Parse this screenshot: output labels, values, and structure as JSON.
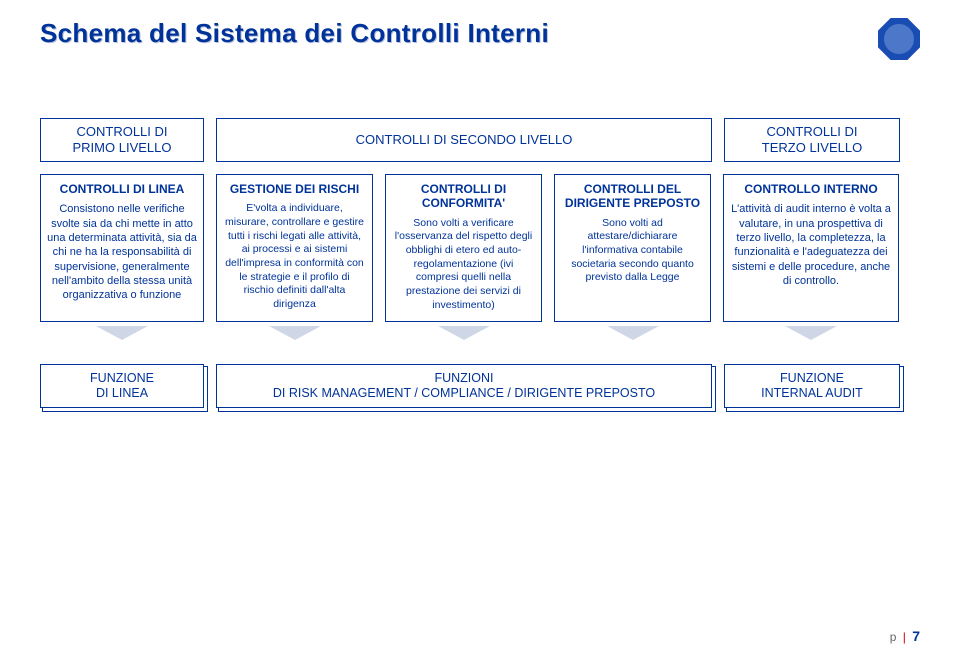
{
  "title": "Schema del Sistema dei Controlli Interni",
  "colors": {
    "primary": "#003399",
    "arrow": "#cfd6e6",
    "title_shadow": "#b8c2dc",
    "background": "#ffffff",
    "footer_gray": "#666666",
    "footer_sep": "#cc0000"
  },
  "level_headers": {
    "l1": "CONTROLLI DI\nPRIMO LIVELLO",
    "l2": "CONTROLLI DI SECONDO LIVELLO",
    "l3": "CONTROLLI DI\nTERZO LIVELLO"
  },
  "cards": [
    {
      "title": "CONTROLLI DI LINEA",
      "body": "Consistono nelle verifiche svolte sia da chi mette in atto una determinata attività, sia da chi ne ha la responsabilità di supervisione, generalmente nell'ambito della stessa unità organizzativa o funzione"
    },
    {
      "title": "GESTIONE DEI RISCHI",
      "body": "E'volta a individuare, misurare, controllare e gestire tutti i rischi legati alle attività, ai processi e ai sistemi dell'impresa in conformità con le strategie e il profilo di rischio definiti dall'alta dirigenza"
    },
    {
      "title": "CONTROLLI DI CONFORMITA'",
      "body": "Sono volti a verificare l'osservanza del rispetto degli obblighi di etero ed auto-regolamentazione (ivi compresi quelli nella prestazione dei servizi di investimento)"
    },
    {
      "title": "CONTROLLI DEL DIRIGENTE PREPOSTO",
      "body": "Sono volti ad attestare/dichiarare l'informativa contabile societaria secondo quanto previsto dalla Legge"
    },
    {
      "title": "CONTROLLO INTERNO",
      "body": "L'attività di audit interno è volta a valutare, in una prospettiva di terzo livello, la completezza, la funzionalità e l'adeguatezza dei sistemi e delle procedure, anche di controllo."
    }
  ],
  "functions": {
    "f1": "FUNZIONE\nDI LINEA",
    "f2": "FUNZIONI\nDI RISK MANAGEMENT / COMPLIANCE / DIRIGENTE PREPOSTO",
    "f3": "FUNZIONE\nINTERNAL AUDIT"
  },
  "footer": {
    "prefix": "p",
    "page": "7"
  }
}
